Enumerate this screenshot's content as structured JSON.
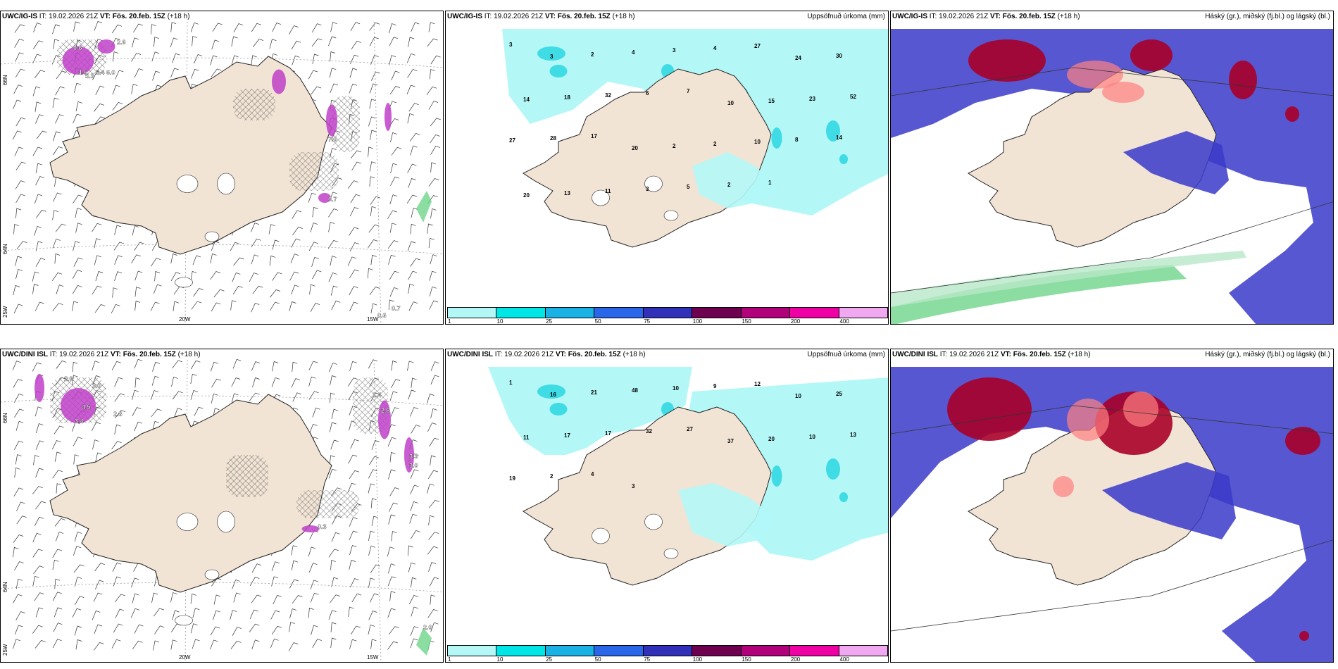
{
  "rows": [
    {
      "model": "UWC/IG-IS",
      "panels": [
        {
          "type": "clouds-wind",
          "init": "IT: 19.02.2026 21Z",
          "valid": "VT: Fös. 20.feb. 15Z",
          "lead": "(+18 h)",
          "labels": [
            "0.6",
            "2.6",
            "4.5",
            "5.3",
            "5.4",
            "6.0",
            "7.0",
            "0.7",
            "0.7",
            "0.6"
          ]
        },
        {
          "type": "precip",
          "init": "IT: 19.02.2026 21Z",
          "valid": "VT: Fös. 20.feb. 15Z",
          "lead": "(+18 h)",
          "title": "Uppsöfnuð úrkoma (mm)",
          "values": [
            "3",
            "3",
            "2",
            "4",
            "3",
            "4",
            "27",
            "24",
            "30",
            "14",
            "18",
            "32",
            "6",
            "7",
            "10",
            "15",
            "23",
            "52",
            "27",
            "28",
            "17",
            "20",
            "2",
            "2",
            "10",
            "8",
            "14",
            "20",
            "13",
            "11",
            "3",
            "5",
            "2",
            "1"
          ]
        },
        {
          "type": "cloud-layers",
          "init": "IT: 19.02.2026 21Z",
          "valid": "VT: Fös. 20.feb. 15Z",
          "lead": "(+18 h)",
          "title": "Háský (gr.), miðský (fj.bl.) og lágský (bl.)"
        }
      ]
    },
    {
      "model": "UWC/DINI ISL",
      "panels": [
        {
          "type": "clouds-wind",
          "init": "IT: 19.02.2026 21Z",
          "valid": "VT: Fös. 20.feb. 15Z",
          "lead": "(+18 h)",
          "labels": [
            "2.0",
            "3.0",
            "4.5",
            "3.4",
            "2.8",
            "1.4",
            "2.8",
            "3.3",
            "3.0",
            "0.3",
            "2.0"
          ]
        },
        {
          "type": "precip",
          "init": "IT: 19.02.2026 21Z",
          "valid": "VT: Fös. 20.feb. 15Z",
          "lead": "(+18 h)",
          "title": "Uppsöfnuð úrkoma (mm)",
          "values": [
            "1",
            "16",
            "21",
            "48",
            "10",
            "9",
            "12",
            "10",
            "25",
            "11",
            "17",
            "17",
            "32",
            "27",
            "37",
            "20",
            "10",
            "13",
            "19",
            "2",
            "4",
            "3"
          ]
        },
        {
          "type": "cloud-layers",
          "init": "IT: 19.02.2026 21Z",
          "valid": "VT: Fös. 20.feb. 15Z",
          "lead": "(+18 h)",
          "title": "Háský (gr.), miðský (fj.bl.) og lágský (bl.)"
        }
      ]
    }
  ],
  "axis": {
    "lat66": "66N",
    "lat64": "64N",
    "lon25": "25W",
    "lon20": "20W",
    "lon15": "15W"
  },
  "colorbar": {
    "ticks": [
      "1",
      "10",
      "25",
      "50",
      "75",
      "100",
      "150",
      "200",
      "400"
    ],
    "colors": [
      "#b3f7f7",
      "#00e5e5",
      "#1ab2e5",
      "#2a66e8",
      "#3030b8",
      "#6e0050",
      "#b0007a",
      "#ee00a5",
      "#f0a8f0"
    ]
  },
  "colors": {
    "land": "#f2e4d5",
    "precip": "#b3f7f7",
    "precip_dark": "#22d4e0",
    "high": "#a80028",
    "mid": "#ff8080",
    "low": "#3a3aca",
    "green": "#6ed48a",
    "snow": "#c040c8"
  }
}
